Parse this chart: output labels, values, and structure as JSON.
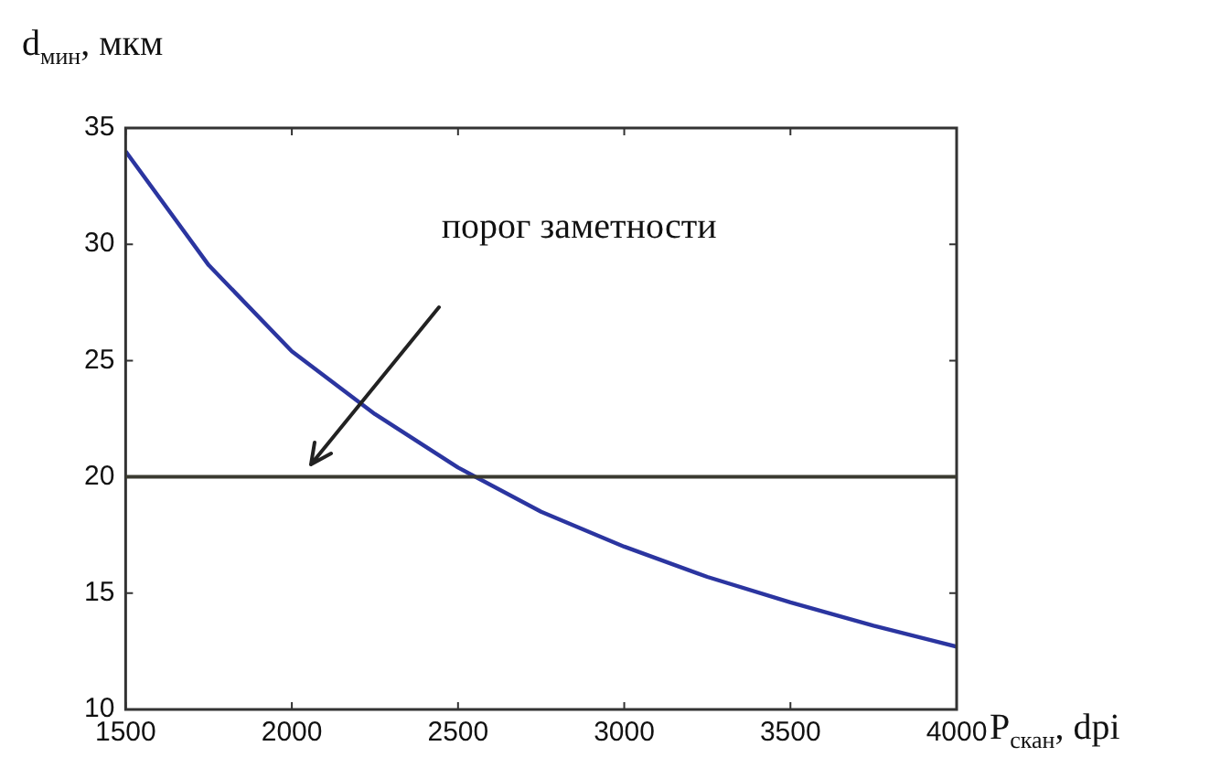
{
  "chart_data": {
    "type": "line",
    "ylabel": "d$_{мин}$, мкм",
    "xlabel": "P$_{скан}$, dpi",
    "x": [
      1500,
      1750,
      2000,
      2250,
      2500,
      2750,
      3000,
      3250,
      3500,
      3750,
      4000
    ],
    "series": [
      {
        "color": "#2b35a0",
        "values": [
          34,
          29.1,
          25.4,
          22.7,
          20.4,
          18.5,
          17,
          15.7,
          14.6,
          13.6,
          12.7
        ]
      }
    ],
    "xlim": [
      1500,
      4000
    ],
    "xticks": [
      1500,
      2000,
      2500,
      3000,
      3500,
      4000
    ],
    "ylim": [
      10,
      35
    ],
    "yticks": [
      10,
      15,
      20,
      25,
      30,
      35
    ],
    "ref_lines": [
      {
        "axis": "y",
        "value": 20,
        "color": "#3a3a30"
      }
    ],
    "annotations": [
      "порог заметности"
    ],
    "grid": false,
    "legend": false,
    "marker": "none",
    "line_style": "solid"
  }
}
